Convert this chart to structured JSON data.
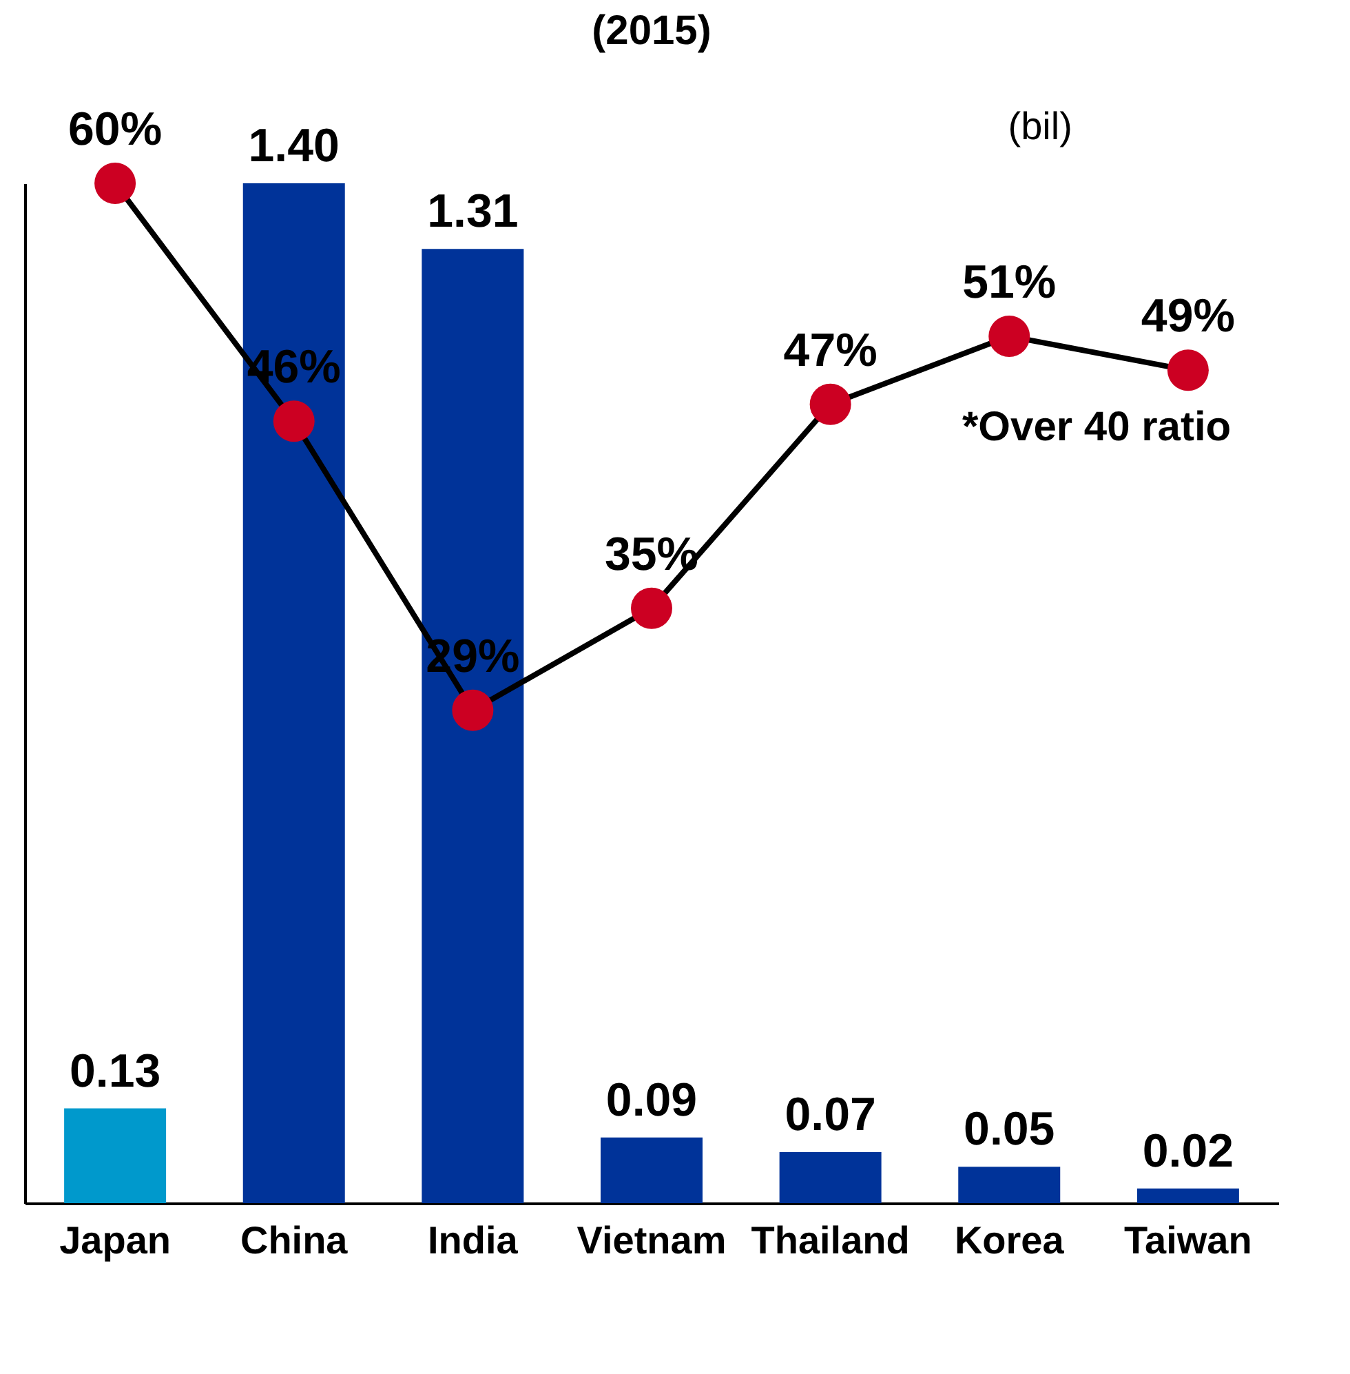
{
  "chart_data": {
    "type": "bar",
    "title": "(2015)",
    "categories": [
      "Japan",
      "China",
      "India",
      "Vietnam",
      "Thailand",
      "Korea",
      "Taiwan"
    ],
    "series": [
      {
        "colors": [
          "#0099cc",
          "#003399",
          "#003399",
          "#003399",
          "#003399",
          "#003399",
          "#003399"
        ],
        "values": [
          0.13,
          1.4,
          1.31,
          0.09,
          0.07,
          0.05,
          0.02
        ],
        "value_labels": [
          "0.13",
          "1.40",
          "1.31",
          "0.09",
          "0.07",
          "0.05",
          "0.02"
        ]
      },
      {
        "type": "line",
        "axis": "y2",
        "color": "#cc0022",
        "marker": "circle",
        "values": [
          60,
          46,
          29,
          35,
          47,
          51,
          49
        ],
        "value_labels": [
          "60%",
          "46%",
          "29%",
          "35%",
          "47%",
          "51%",
          "49%"
        ]
      }
    ],
    "ylim": [
      0,
      1.4
    ],
    "y2lim": [
      0,
      60
    ],
    "tick_labels": "x",
    "annotations": [
      "(bil)",
      "*Over 40 ratio"
    ]
  }
}
